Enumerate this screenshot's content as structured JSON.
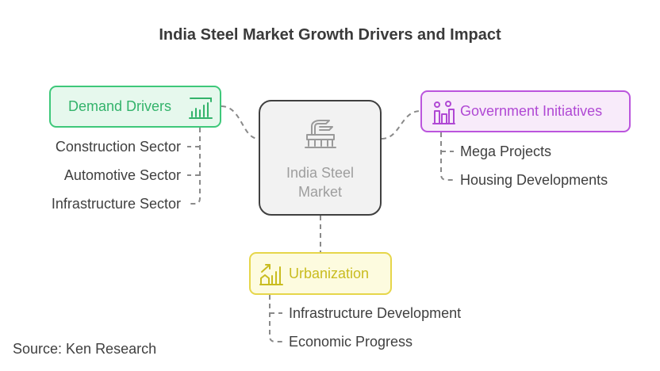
{
  "title": "India Steel Market Growth Drivers and Impact",
  "center": {
    "label_line1": "India Steel",
    "label_line2": "Market",
    "icon": "steel-factory-icon"
  },
  "nodes": {
    "demand": {
      "label": "Demand Drivers",
      "icon": "bar-chart-icon",
      "color": "#3ec87a",
      "items": [
        "Construction Sector",
        "Automotive Sector",
        "Infrastructure Sector"
      ]
    },
    "government": {
      "label": "Government Initiatives",
      "icon": "government-buildings-icon",
      "color": "#bb55dd",
      "items": [
        "Mega Projects",
        "Housing Developments"
      ]
    },
    "urbanization": {
      "label": "Urbanization",
      "icon": "growth-house-icon",
      "color": "#e6d64a",
      "items": [
        "Infrastructure Development",
        "Economic Progress"
      ]
    }
  },
  "source": "Source: Ken Research"
}
